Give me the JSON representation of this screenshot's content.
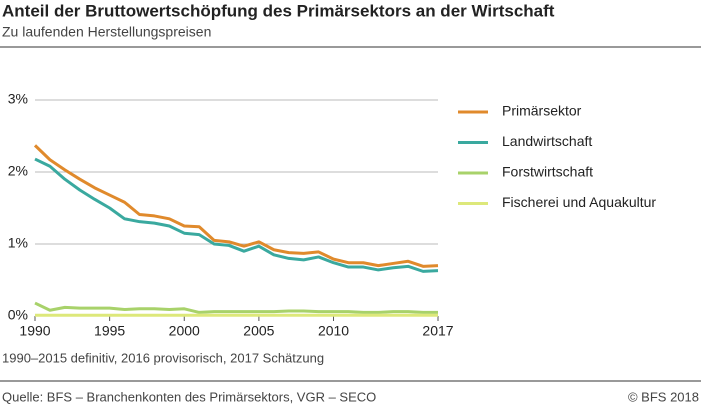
{
  "chart_data": {
    "type": "line",
    "title": "Anteil der Bruttowertschöpfung des Primärsektors an der Wirtschaft",
    "subtitle": "Zu laufenden Herstellungspreisen",
    "note": "1990–2015 definitiv, 2016 provisorisch, 2017 Schätzung",
    "source": "Quelle: BFS – Branchenkonten des Primärsektors, VGR – SECO",
    "copyright": "© BFS  2018",
    "x": [
      1990,
      1991,
      1992,
      1993,
      1994,
      1995,
      1996,
      1997,
      1998,
      1999,
      2000,
      2001,
      2002,
      2003,
      2004,
      2005,
      2006,
      2007,
      2008,
      2009,
      2010,
      2011,
      2012,
      2013,
      2014,
      2015,
      2016,
      2017
    ],
    "xlim": [
      1990,
      2017
    ],
    "xticks": [
      1990,
      1995,
      2000,
      2005,
      2010,
      2017
    ],
    "ylim": [
      0,
      3
    ],
    "yticks": [
      {
        "value": 0,
        "label": "0%"
      },
      {
        "value": 1,
        "label": "1%"
      },
      {
        "value": 2,
        "label": "2%"
      },
      {
        "value": 3,
        "label": "3%"
      }
    ],
    "grid": true,
    "legend": "right",
    "series": [
      {
        "name": "Primärsektor",
        "color": "#e08a2c",
        "values": [
          2.37,
          2.17,
          2.03,
          1.9,
          1.78,
          1.68,
          1.58,
          1.41,
          1.39,
          1.35,
          1.25,
          1.24,
          1.05,
          1.03,
          0.97,
          1.03,
          0.92,
          0.88,
          0.87,
          0.89,
          0.79,
          0.74,
          0.74,
          0.7,
          0.73,
          0.76,
          0.69,
          0.7
        ]
      },
      {
        "name": "Landwirtschaft",
        "color": "#3aa99f",
        "values": [
          2.18,
          2.08,
          1.9,
          1.75,
          1.62,
          1.5,
          1.35,
          1.31,
          1.29,
          1.25,
          1.15,
          1.13,
          1.0,
          0.98,
          0.9,
          0.97,
          0.85,
          0.8,
          0.78,
          0.82,
          0.74,
          0.68,
          0.68,
          0.64,
          0.67,
          0.69,
          0.62,
          0.63
        ]
      },
      {
        "name": "Forstwirtschaft",
        "color": "#a8d26a",
        "values": [
          0.18,
          0.08,
          0.12,
          0.11,
          0.11,
          0.11,
          0.09,
          0.1,
          0.1,
          0.09,
          0.1,
          0.05,
          0.06,
          0.06,
          0.06,
          0.06,
          0.06,
          0.07,
          0.07,
          0.06,
          0.06,
          0.06,
          0.05,
          0.05,
          0.06,
          0.06,
          0.05,
          0.05
        ]
      },
      {
        "name": "Fischerei und Aquakultur",
        "color": "#dde87a",
        "values": [
          0.01,
          0.01,
          0.01,
          0.01,
          0.01,
          0.01,
          0.01,
          0.01,
          0.01,
          0.01,
          0.01,
          0.01,
          0.01,
          0.01,
          0.01,
          0.01,
          0.01,
          0.01,
          0.01,
          0.01,
          0.01,
          0.01,
          0.01,
          0.01,
          0.01,
          0.01,
          0.01,
          0.01
        ]
      }
    ]
  }
}
